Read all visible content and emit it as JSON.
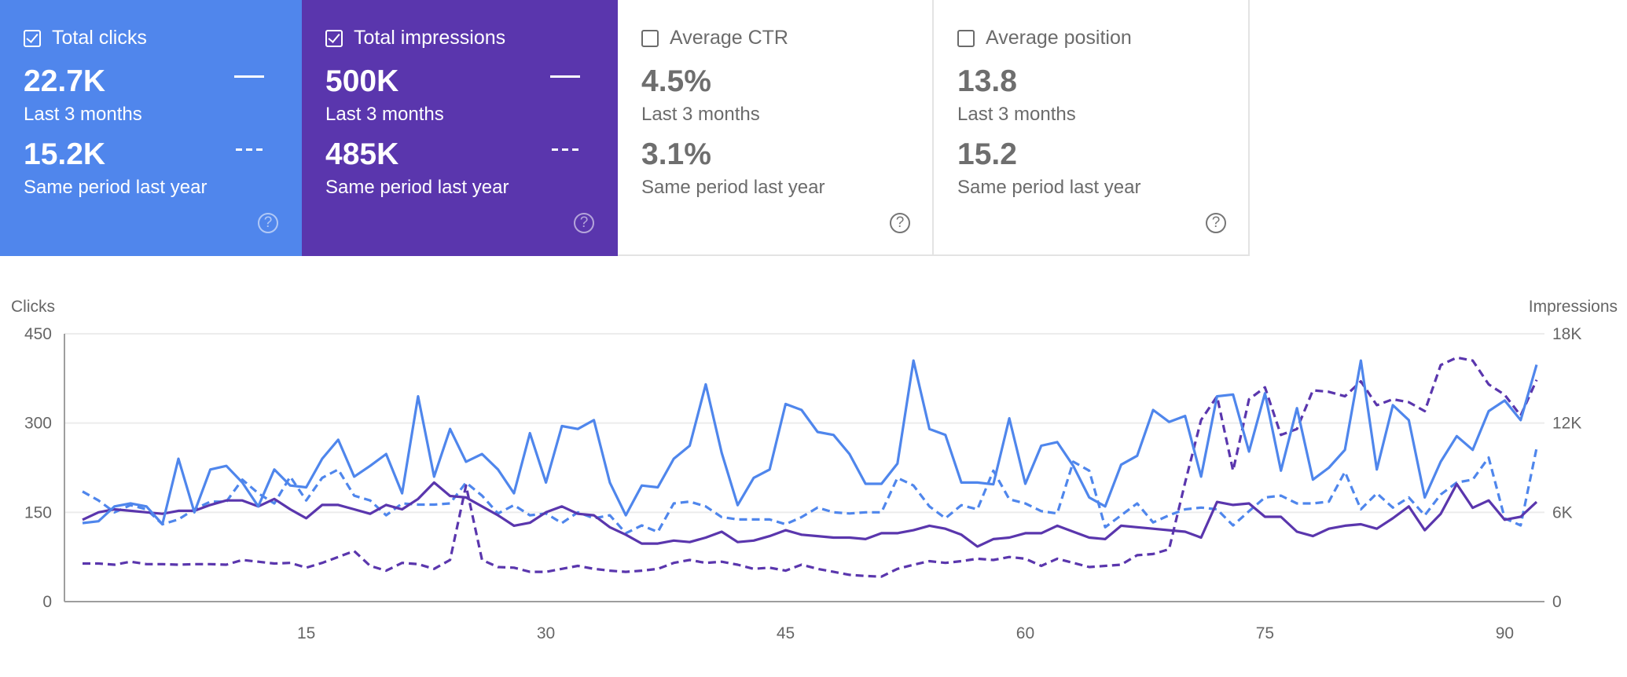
{
  "cards": [
    {
      "title": "Total clicks",
      "checked": true,
      "value": "22.7K",
      "period": "Last 3 months",
      "prev_value": "15.2K",
      "prev_period": "Same period last year",
      "color": "#5086ec"
    },
    {
      "title": "Total impressions",
      "checked": true,
      "value": "500K",
      "period": "Last 3 months",
      "prev_value": "485K",
      "prev_period": "Same period last year",
      "color": "#5a36ad"
    },
    {
      "title": "Average CTR",
      "checked": false,
      "value": "4.5%",
      "period": "Last 3 months",
      "prev_value": "3.1%",
      "prev_period": "Same period last year"
    },
    {
      "title": "Average position",
      "checked": false,
      "value": "13.8",
      "period": "Last 3 months",
      "prev_value": "15.2",
      "prev_period": "Same period last year"
    }
  ],
  "icons": {
    "checkbox": "checkbox-icon",
    "help": "help-circle-icon"
  },
  "chart_data": {
    "type": "line",
    "ylabel_left": "Clicks",
    "ylabel_right": "Impressions",
    "ylim_left": [
      0,
      450
    ],
    "ylim_right": [
      0,
      18000
    ],
    "yticks_left": [
      "0",
      "150",
      "300",
      "450"
    ],
    "yticks_right": [
      "0",
      "6K",
      "12K",
      "18K"
    ],
    "xticks": [
      "15",
      "30",
      "45",
      "60",
      "75",
      "90"
    ],
    "xtick_values": [
      15,
      30,
      45,
      60,
      75,
      90
    ],
    "x": "days 1-92",
    "grid": true,
    "series": [
      {
        "metric": "clicks",
        "period": "current",
        "axis": "left",
        "style": "solid",
        "color": "#4f86ec",
        "values": [
          132,
          135,
          160,
          165,
          160,
          130,
          240,
          150,
          222,
          228,
          200,
          160,
          222,
          195,
          192,
          240,
          272,
          210,
          228,
          248,
          182,
          345,
          210,
          290,
          235,
          248,
          222,
          182,
          283,
          200,
          295,
          290,
          305,
          200,
          145,
          195,
          192,
          240,
          262,
          365,
          250,
          162,
          208,
          222,
          332,
          322,
          285,
          280,
          248,
          198,
          198,
          232,
          405,
          290,
          280,
          200,
          200,
          197,
          308,
          198,
          262,
          268,
          228,
          175,
          160,
          230,
          245,
          322,
          302,
          312,
          210,
          345,
          348,
          252,
          350,
          220,
          325,
          205,
          225,
          255,
          405,
          222,
          330,
          305,
          175,
          235,
          278,
          255,
          320,
          338,
          305,
          398
        ]
      },
      {
        "metric": "clicks",
        "period": "previous",
        "axis": "left",
        "style": "dashed",
        "color": "#4f86ec",
        "values": [
          185,
          170,
          150,
          162,
          155,
          130,
          138,
          155,
          168,
          168,
          205,
          182,
          165,
          210,
          170,
          208,
          222,
          178,
          170,
          145,
          165,
          163,
          163,
          165,
          200,
          178,
          148,
          162,
          145,
          148,
          132,
          150,
          140,
          145,
          115,
          128,
          117,
          165,
          168,
          160,
          142,
          138,
          138,
          138,
          130,
          142,
          158,
          150,
          148,
          150,
          150,
          208,
          195,
          160,
          140,
          162,
          155,
          220,
          172,
          165,
          152,
          148,
          235,
          220,
          125,
          145,
          165,
          133,
          145,
          155,
          158,
          155,
          128,
          152,
          175,
          178,
          165,
          165,
          168,
          218,
          155,
          182,
          158,
          175,
          145,
          180,
          200,
          205,
          242,
          140,
          128,
          258
        ]
      },
      {
        "metric": "impressions",
        "period": "current",
        "axis": "right",
        "style": "solid",
        "color": "#5a36ad",
        "values": [
          5500,
          6000,
          6200,
          6100,
          6000,
          5900,
          6100,
          6100,
          6500,
          6800,
          6800,
          6400,
          6900,
          6200,
          5600,
          6500,
          6500,
          6200,
          5900,
          6500,
          6200,
          6900,
          8000,
          7100,
          7000,
          6400,
          5800,
          5100,
          5300,
          6000,
          6400,
          5900,
          5800,
          5000,
          4500,
          3900,
          3900,
          4100,
          4000,
          4300,
          4700,
          4000,
          4100,
          4400,
          4800,
          4500,
          4400,
          4300,
          4300,
          4200,
          4600,
          4600,
          4800,
          5100,
          4900,
          4500,
          3700,
          4200,
          4300,
          4600,
          4600,
          5100,
          4700,
          4300,
          4200,
          5100,
          5000,
          4900,
          4800,
          4700,
          4300,
          6700,
          6500,
          6600,
          5700,
          5700,
          4700,
          4400,
          4900,
          5100,
          5200,
          4900,
          5600,
          6400,
          4800,
          5900,
          7900,
          6300,
          6800,
          5500,
          5700,
          6700
        ]
      },
      {
        "metric": "impressions",
        "period": "previous",
        "axis": "right",
        "style": "dashed",
        "color": "#5a36ad",
        "values": [
          2560,
          2560,
          2480,
          2680,
          2520,
          2520,
          2480,
          2520,
          2520,
          2480,
          2800,
          2680,
          2560,
          2600,
          2280,
          2600,
          3000,
          3400,
          2400,
          2080,
          2600,
          2520,
          2200,
          2800,
          7800,
          2800,
          2320,
          2280,
          2000,
          2000,
          2200,
          2400,
          2200,
          2080,
          2000,
          2080,
          2200,
          2600,
          2800,
          2600,
          2680,
          2480,
          2200,
          2280,
          2080,
          2480,
          2200,
          2000,
          1800,
          1720,
          1680,
          2200,
          2480,
          2720,
          2600,
          2720,
          2880,
          2800,
          3000,
          2880,
          2400,
          2880,
          2600,
          2320,
          2400,
          2480,
          3120,
          3200,
          3520,
          8000,
          12200,
          13800,
          8800,
          13600,
          14400,
          11200,
          11600,
          14200,
          14100,
          13800,
          14800,
          13200,
          13600,
          13400,
          12800,
          15900,
          16400,
          16200,
          14600,
          13900,
          12500,
          14900
        ]
      }
    ]
  }
}
